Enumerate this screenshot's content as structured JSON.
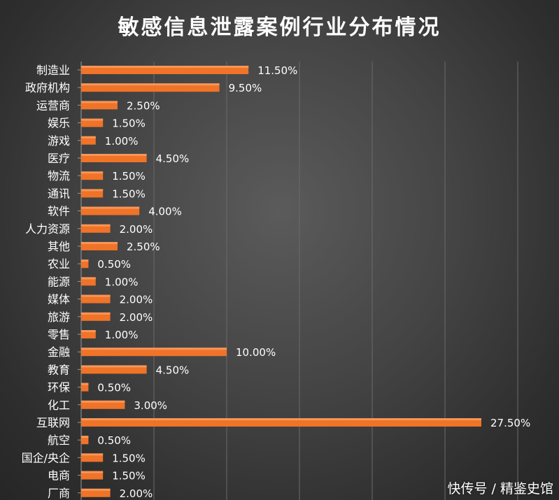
{
  "chart_data": {
    "type": "bar",
    "orientation": "horizontal",
    "title": "敏感信息泄露案例行业分布情况",
    "categories": [
      "制造业",
      "政府机构",
      "运营商",
      "娱乐",
      "游戏",
      "医疗",
      "物流",
      "通讯",
      "软件",
      "人力资源",
      "其他",
      "农业",
      "能源",
      "媒体",
      "旅游",
      "零售",
      "金融",
      "教育",
      "环保",
      "化工",
      "互联网",
      "航空",
      "国企/央企",
      "电商",
      "厂商"
    ],
    "values": [
      11.5,
      9.5,
      2.5,
      1.5,
      1.0,
      4.5,
      1.5,
      1.5,
      4.0,
      2.0,
      2.5,
      0.5,
      1.0,
      2.0,
      2.0,
      1.0,
      10.0,
      4.5,
      0.5,
      3.0,
      27.5,
      0.5,
      1.5,
      1.5,
      2.0
    ],
    "labels": [
      "11.50%",
      "9.50%",
      "2.50%",
      "1.50%",
      "1.00%",
      "4.50%",
      "1.50%",
      "1.50%",
      "4.00%",
      "2.00%",
      "2.50%",
      "0.50%",
      "1.00%",
      "2.00%",
      "2.00%",
      "1.00%",
      "10.00%",
      "4.50%",
      "0.50%",
      "3.00%",
      "27.50%",
      "0.50%",
      "1.50%",
      "1.50%",
      "2.00%"
    ],
    "xlim": [
      0,
      30
    ],
    "grid": true,
    "bar_color": "#f07328",
    "background_color": "#444444",
    "text_color": "#ffffff"
  },
  "watermark": "快传号 / 精鉴史馆"
}
